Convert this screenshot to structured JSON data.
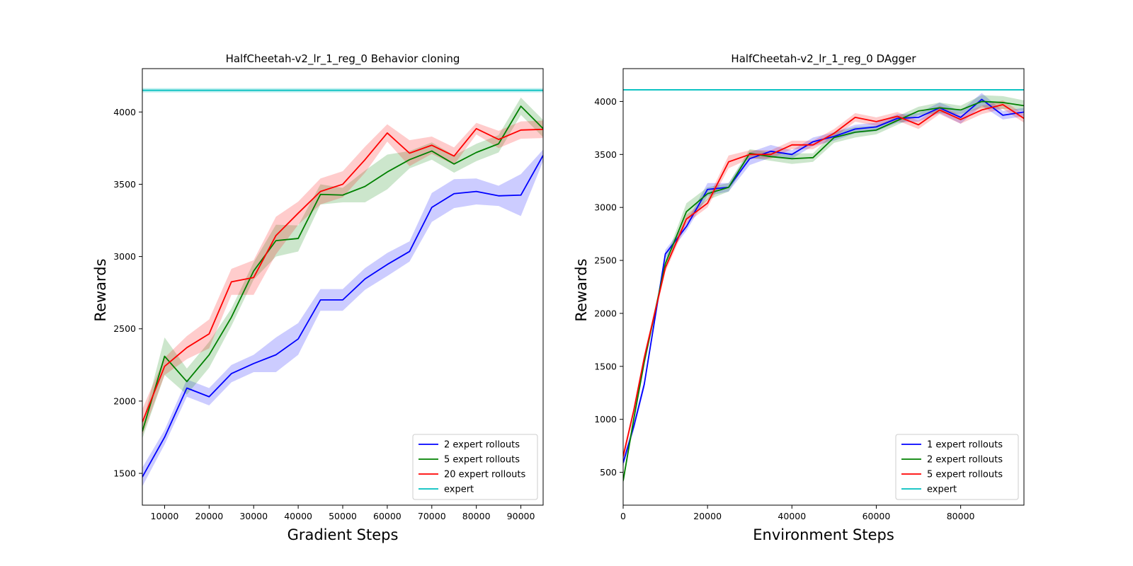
{
  "chart_data": [
    {
      "type": "line",
      "title": "HalfCheetah-v2_lr_1_reg_0 Behavior cloning",
      "xlabel": "Gradient Steps",
      "ylabel": "Rewards",
      "xlim": [
        5000,
        95000
      ],
      "ylim": [
        1280,
        4300
      ],
      "xticks": [
        10000,
        20000,
        30000,
        40000,
        50000,
        60000,
        70000,
        80000,
        90000
      ],
      "yticks": [
        1500,
        2000,
        2500,
        3000,
        3500,
        4000
      ],
      "grid": false,
      "legend_position": "lower-right",
      "series": [
        {
          "name": "2 expert rollouts",
          "color": "#0000ff",
          "x": [
            5000,
            10000,
            15000,
            20000,
            25000,
            30000,
            35000,
            40000,
            45000,
            50000,
            55000,
            60000,
            65000,
            70000,
            75000,
            80000,
            85000,
            90000,
            95000
          ],
          "y": [
            1475,
            1750,
            2090,
            2030,
            2190,
            2260,
            2320,
            2430,
            2700,
            2700,
            2845,
            2945,
            3035,
            3340,
            3435,
            3450,
            3420,
            3425,
            3700
          ],
          "band": [
            65,
            50,
            60,
            60,
            60,
            60,
            120,
            110,
            75,
            75,
            75,
            80,
            70,
            100,
            100,
            90,
            70,
            145,
            40
          ]
        },
        {
          "name": "5 expert rollouts",
          "color": "#008000",
          "x": [
            5000,
            10000,
            15000,
            20000,
            25000,
            30000,
            35000,
            40000,
            45000,
            50000,
            55000,
            60000,
            65000,
            70000,
            75000,
            80000,
            85000,
            90000,
            95000
          ],
          "y": [
            1790,
            2310,
            2135,
            2320,
            2580,
            2900,
            3110,
            3125,
            3430,
            3425,
            3485,
            3585,
            3670,
            3730,
            3640,
            3720,
            3780,
            4040,
            3885
          ],
          "band": [
            50,
            130,
            90,
            90,
            60,
            60,
            110,
            90,
            70,
            50,
            110,
            120,
            60,
            60,
            60,
            60,
            60,
            60,
            60
          ]
        },
        {
          "name": "20 expert rollouts",
          "color": "#ff0000",
          "x": [
            5000,
            10000,
            15000,
            20000,
            25000,
            30000,
            35000,
            40000,
            45000,
            50000,
            55000,
            60000,
            65000,
            70000,
            75000,
            80000,
            85000,
            90000,
            95000
          ],
          "y": [
            1855,
            2240,
            2370,
            2465,
            2825,
            2855,
            3145,
            3300,
            3450,
            3500,
            3670,
            3855,
            3715,
            3770,
            3695,
            3885,
            3810,
            3875,
            3880
          ],
          "band": [
            90,
            60,
            80,
            100,
            90,
            120,
            130,
            80,
            90,
            90,
            90,
            60,
            90,
            60,
            60,
            40,
            60,
            60,
            60
          ]
        }
      ],
      "expert": {
        "name": "expert",
        "color": "#00bfbf",
        "value": 4150,
        "band": 15
      }
    },
    {
      "type": "line",
      "title": "HalfCheetah-v2_lr_1_reg_0 DAgger",
      "xlabel": "Environment Steps",
      "ylabel": "Rewards",
      "xlim": [
        0,
        95000
      ],
      "ylim": [
        190,
        4310
      ],
      "xticks": [
        0,
        20000,
        40000,
        60000,
        80000
      ],
      "yticks": [
        500,
        1000,
        1500,
        2000,
        2500,
        3000,
        3500,
        4000
      ],
      "grid": false,
      "legend_position": "lower-right",
      "series": [
        {
          "name": "1 expert rollouts",
          "color": "#0000ff",
          "x": [
            0,
            2500,
            5000,
            10000,
            15000,
            20000,
            25000,
            30000,
            35000,
            40000,
            45000,
            50000,
            55000,
            60000,
            65000,
            70000,
            75000,
            80000,
            85000,
            90000,
            95000
          ],
          "y": [
            590,
            930,
            1330,
            2560,
            2820,
            3170,
            3190,
            3460,
            3530,
            3500,
            3620,
            3670,
            3740,
            3760,
            3840,
            3850,
            3940,
            3850,
            4020,
            3870,
            3900
          ],
          "band": [
            40,
            40,
            40,
            40,
            40,
            60,
            40,
            60,
            60,
            40,
            40,
            40,
            40,
            40,
            40,
            40,
            50,
            60,
            60,
            40,
            40
          ]
        },
        {
          "name": "2 expert rollouts",
          "color": "#008000",
          "x": [
            0,
            2500,
            5000,
            10000,
            15000,
            20000,
            25000,
            30000,
            35000,
            40000,
            45000,
            50000,
            55000,
            60000,
            65000,
            70000,
            75000,
            80000,
            85000,
            90000,
            95000
          ],
          "y": [
            420,
            1000,
            1540,
            2470,
            2960,
            3130,
            3190,
            3510,
            3480,
            3460,
            3470,
            3660,
            3710,
            3730,
            3820,
            3910,
            3940,
            3920,
            4000,
            3990,
            3960
          ],
          "band": [
            40,
            40,
            40,
            40,
            80,
            60,
            40,
            40,
            40,
            50,
            40,
            50,
            50,
            40,
            40,
            40,
            50,
            40,
            60,
            60,
            50
          ]
        },
        {
          "name": "5 expert rollouts",
          "color": "#ff0000",
          "x": [
            0,
            2500,
            5000,
            10000,
            15000,
            20000,
            25000,
            30000,
            35000,
            40000,
            45000,
            50000,
            55000,
            60000,
            65000,
            70000,
            75000,
            80000,
            85000,
            90000,
            95000
          ],
          "y": [
            650,
            1080,
            1580,
            2430,
            2890,
            3040,
            3430,
            3500,
            3500,
            3590,
            3590,
            3700,
            3850,
            3810,
            3860,
            3780,
            3920,
            3830,
            3920,
            3970,
            3840
          ],
          "band": [
            40,
            40,
            40,
            40,
            40,
            40,
            60,
            40,
            40,
            40,
            40,
            40,
            40,
            40,
            40,
            40,
            40,
            40,
            40,
            40,
            40
          ]
        }
      ],
      "expert": {
        "name": "expert",
        "color": "#00bfbf",
        "value": 4110,
        "band": 5
      }
    }
  ]
}
